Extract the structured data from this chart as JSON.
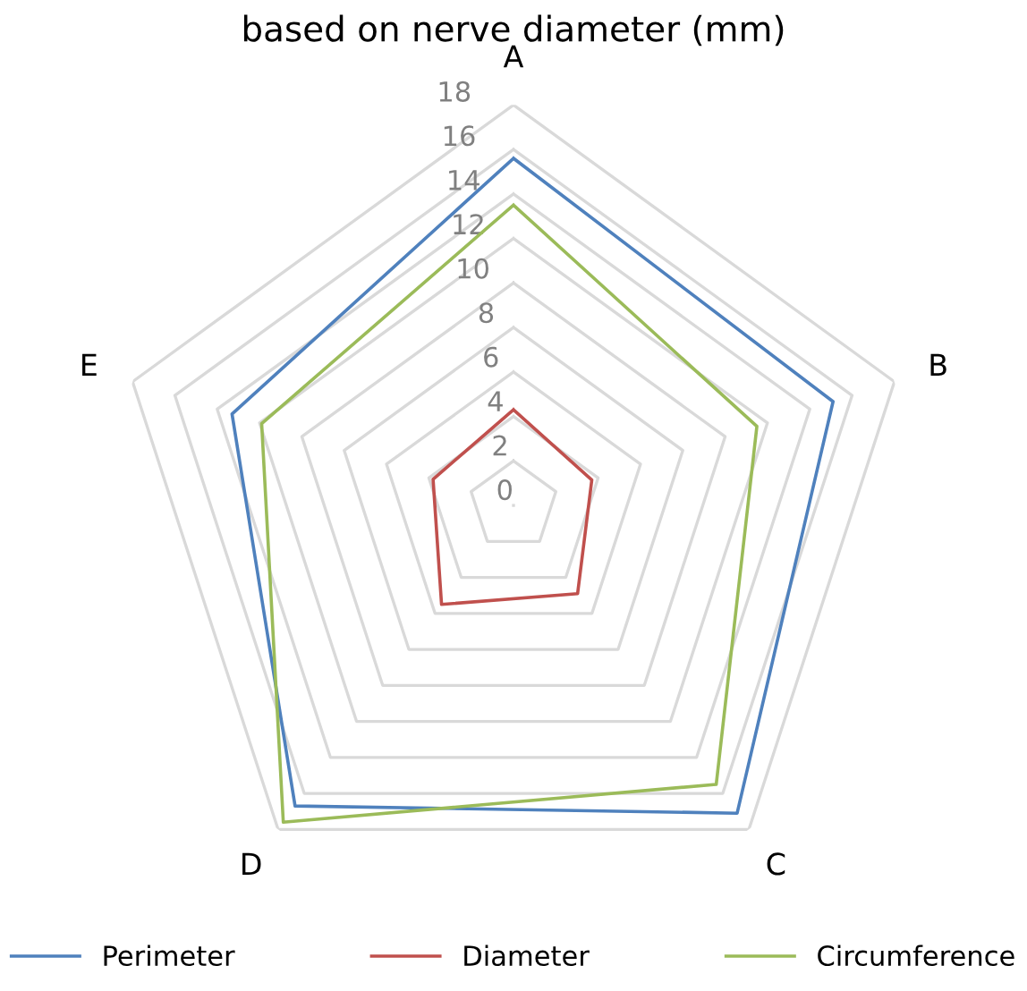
{
  "chart_data": {
    "type": "radar",
    "title": "based on nerve diameter (mm)",
    "categories": [
      "A",
      "B",
      "C",
      "D",
      "E"
    ],
    "series": [
      {
        "name": "Perimeter",
        "color": "#4f81bd",
        "values": [
          15.6,
          15.1,
          17.1,
          16.7,
          13.3
        ]
      },
      {
        "name": "Diameter",
        "color": "#c0504d",
        "values": [
          4.3,
          3.7,
          4.9,
          5.5,
          3.8
        ]
      },
      {
        "name": "Circumference",
        "color": "#9bbb59",
        "values": [
          13.5,
          11.5,
          15.5,
          17.6,
          11.9
        ]
      }
    ],
    "ylim": [
      0,
      18
    ],
    "yticks": [
      0,
      2,
      4,
      6,
      8,
      10,
      12,
      14,
      16,
      18
    ],
    "grid": true,
    "legend": "bottom",
    "marker": "none"
  }
}
